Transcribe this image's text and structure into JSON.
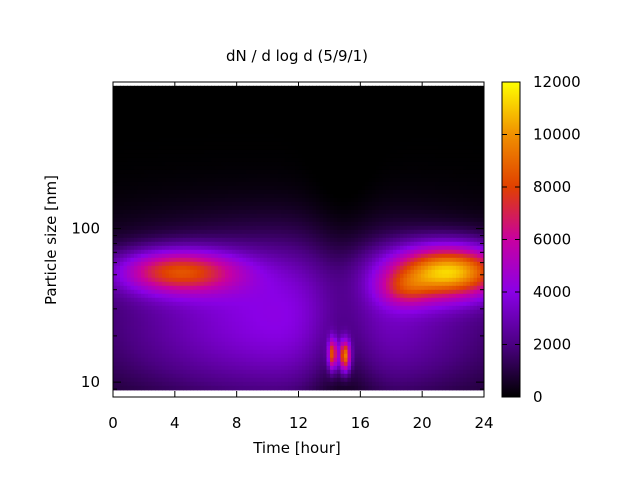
{
  "chart_data": {
    "type": "heatmap",
    "title": "dN / d log d (5/9/1)",
    "xlabel": "Time [hour]",
    "ylabel": "Particle size [nm]",
    "x_range": [
      0,
      24
    ],
    "x_ticks": [
      0,
      4,
      8,
      12,
      16,
      20,
      24
    ],
    "y_scale": "log",
    "y_range": [
      8,
      900
    ],
    "y_ticks": [
      10,
      100
    ],
    "colorbar": {
      "range": [
        0,
        12000
      ],
      "ticks": [
        0,
        2000,
        4000,
        6000,
        8000,
        10000,
        12000
      ],
      "palette": [
        "#000000",
        "#4b0082",
        "#8a00e6",
        "#c800a0",
        "#e04000",
        "#f09000",
        "#ffff00"
      ]
    },
    "data_y_extent": [
      9,
      850
    ],
    "features": [
      {
        "description": "morning mode",
        "time": 3.5,
        "size_nm": 52,
        "value": 6300
      },
      {
        "description": "small-particle band",
        "time": 14.3,
        "size_nm": 15,
        "value": 7000
      },
      {
        "description": "small-particle band",
        "time": 15.0,
        "size_nm": 15,
        "value": 8000
      },
      {
        "description": "evening mode",
        "time": 21.5,
        "size_nm": 55,
        "value": 9500
      }
    ]
  }
}
